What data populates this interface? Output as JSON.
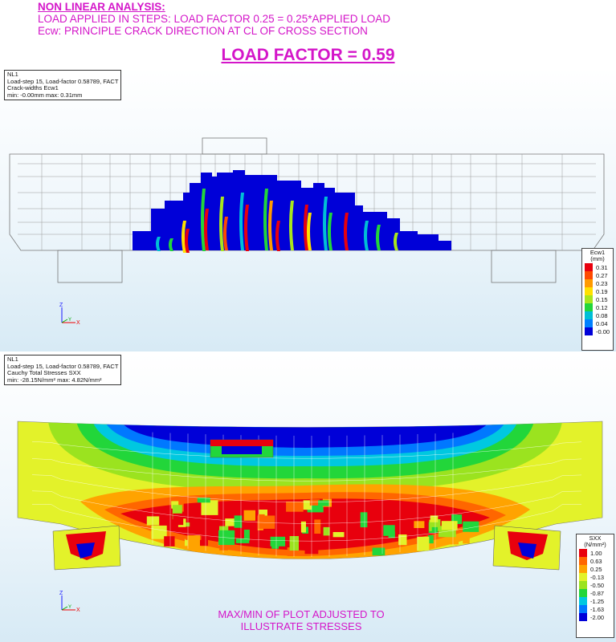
{
  "header": {
    "line1": "NON LINEAR ANALYSIS:",
    "line2": "LOAD APPLIED IN STEPS:  LOAD FACTOR 0.25 = 0.25*APPLIED LOAD",
    "line3": "Ecw:  PRINCIPLE CRACK DIRECTION AT CL OF CROSS SECTION",
    "load_factor": "LOAD FACTOR = 0.59",
    "color": "#d416c9"
  },
  "crack_panel": {
    "info": [
      "NL1",
      "Load-step 15, Load-factor 0.58789, FACT",
      "Crack-widths Ecw1",
      "min: -0.00mm max:  0.31mm"
    ],
    "legend_title": [
      "Ecw1",
      "(mm)"
    ],
    "legend_values": [
      "0.31",
      "0.27",
      "0.23",
      "0.19",
      "0.15",
      "0.12",
      "0.08",
      "0.04",
      "-0.00"
    ],
    "legend_colors": [
      "#e8000d",
      "#ff4a00",
      "#ff9a00",
      "#ffe000",
      "#a8e61d",
      "#22d63a",
      "#00bfd6",
      "#0080ff",
      "#0000d8"
    ],
    "axes": {
      "z": "Z",
      "y": "Y",
      "x": "X"
    }
  },
  "stress_panel": {
    "info": [
      "NL1",
      "Load-step 15, Load-factor 0.58789, FACT",
      "Cauchy Total Stresses SXX",
      "min: -28.15N/mm² max:  4.82N/mm²"
    ],
    "legend_title": [
      "SXX",
      "(N/mm²)"
    ],
    "legend_values": [
      "1.00",
      "0.63",
      "0.25",
      "-0.13",
      "-0.50",
      "-0.87",
      "-1.25",
      "-1.63",
      "-2.00"
    ],
    "legend_colors": [
      "#e8000d",
      "#ff6600",
      "#ffa300",
      "#e3f22a",
      "#9be31f",
      "#22d63a",
      "#00c8e0",
      "#0078ff",
      "#0000d8"
    ],
    "note": [
      "MAX/MIN OF PLOT ADJUSTED TO",
      "ILLUSTRATE STRESSES"
    ],
    "axes": {
      "z": "Z",
      "y": "Y",
      "x": "X"
    }
  }
}
